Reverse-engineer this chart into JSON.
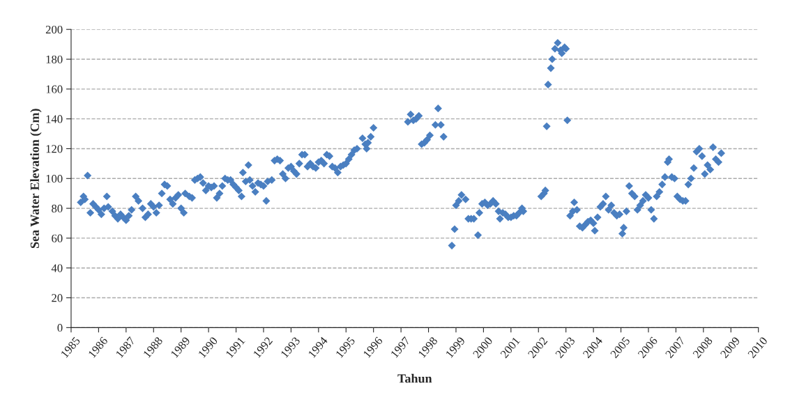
{
  "chart_data": {
    "type": "scatter",
    "xlabel": "Tahun",
    "ylabel": "Sea Water Elevation (Cm)",
    "x": [
      1985.35,
      1985.45,
      1985.5,
      1985.6,
      1985.7,
      1985.8,
      1985.9,
      1986.0,
      1986.1,
      1986.2,
      1986.3,
      1986.35,
      1986.5,
      1986.6,
      1986.7,
      1986.8,
      1986.9,
      1987.0,
      1987.1,
      1987.2,
      1987.35,
      1987.45,
      1987.6,
      1987.7,
      1987.8,
      1987.9,
      1988.0,
      1988.1,
      1988.2,
      1988.3,
      1988.4,
      1988.5,
      1988.6,
      1988.7,
      1988.8,
      1988.9,
      1989.0,
      1989.1,
      1989.15,
      1989.3,
      1989.4,
      1989.5,
      1989.6,
      1989.7,
      1989.8,
      1989.9,
      1990.0,
      1990.1,
      1990.2,
      1990.3,
      1990.4,
      1990.5,
      1990.6,
      1990.7,
      1990.8,
      1990.9,
      1991.0,
      1991.1,
      1991.2,
      1991.25,
      1991.35,
      1991.45,
      1991.5,
      1991.6,
      1991.7,
      1991.8,
      1991.9,
      1992.0,
      1992.1,
      1992.15,
      1992.3,
      1992.4,
      1992.5,
      1992.6,
      1992.7,
      1992.8,
      1992.9,
      1993.0,
      1993.1,
      1993.2,
      1993.3,
      1993.4,
      1993.5,
      1993.6,
      1993.7,
      1993.8,
      1993.9,
      1994.0,
      1994.1,
      1994.2,
      1994.3,
      1994.4,
      1994.5,
      1994.6,
      1994.7,
      1994.8,
      1994.9,
      1995.0,
      1995.1,
      1995.2,
      1995.3,
      1995.4,
      1995.6,
      1995.7,
      1995.75,
      1995.8,
      1995.9,
      1996.0,
      1997.25,
      1997.35,
      1997.45,
      1997.55,
      1997.65,
      1997.75,
      1997.85,
      1997.95,
      1998.05,
      1998.25,
      1998.35,
      1998.45,
      1998.55,
      1998.85,
      1998.95,
      1999.0,
      1999.1,
      1999.2,
      1999.35,
      1999.45,
      1999.55,
      1999.65,
      1999.8,
      1999.85,
      1999.95,
      2000.05,
      2000.15,
      2000.25,
      2000.35,
      2000.45,
      2000.55,
      2000.6,
      2000.7,
      2000.8,
      2000.9,
      2001.0,
      2001.1,
      2001.2,
      2001.3,
      2001.4,
      2001.45,
      2002.1,
      2002.2,
      2002.25,
      2002.3,
      2002.35,
      2002.45,
      2002.5,
      2002.6,
      2002.7,
      2002.8,
      2002.85,
      2002.95,
      2003.0,
      2003.05,
      2003.15,
      2003.25,
      2003.3,
      2003.4,
      2003.5,
      2003.6,
      2003.7,
      2003.8,
      2003.9,
      2004.0,
      2004.05,
      2004.15,
      2004.25,
      2004.35,
      2004.45,
      2004.55,
      2004.65,
      2004.75,
      2004.85,
      2004.95,
      2005.05,
      2005.1,
      2005.2,
      2005.3,
      2005.4,
      2005.5,
      2005.6,
      2005.7,
      2005.8,
      2005.9,
      2006.0,
      2006.1,
      2006.2,
      2006.3,
      2006.4,
      2006.5,
      2006.6,
      2006.7,
      2006.75,
      2006.85,
      2006.95,
      2007.05,
      2007.15,
      2007.25,
      2007.35,
      2007.45,
      2007.55,
      2007.65,
      2007.75,
      2007.85,
      2007.95,
      2008.05,
      2008.15,
      2008.25,
      2008.35,
      2008.45,
      2008.55,
      2008.65
    ],
    "series": [
      {
        "color": "#4a7fc1",
        "values": [
          84,
          88,
          86,
          102,
          77,
          83,
          81,
          79,
          76,
          80,
          88,
          81,
          78,
          75,
          73,
          76,
          74,
          72,
          75,
          79,
          88,
          85,
          80,
          74,
          76,
          83,
          81,
          77,
          82,
          90,
          96,
          95,
          86,
          83,
          87,
          89,
          80,
          77,
          90,
          88,
          87,
          99,
          100,
          101,
          97,
          92,
          95,
          94,
          95,
          87,
          90,
          95,
          100,
          99,
          99,
          96,
          94,
          92,
          88,
          104,
          98,
          109,
          99,
          95,
          91,
          97,
          96,
          95,
          85,
          98,
          99,
          112,
          113,
          112,
          103,
          100,
          107,
          108,
          105,
          103,
          110,
          116,
          116,
          108,
          110,
          108,
          107,
          111,
          112,
          110,
          116,
          115,
          108,
          107,
          104,
          108,
          109,
          110,
          113,
          116,
          119,
          120,
          127,
          123,
          120,
          124,
          128,
          134,
          138,
          143,
          139,
          140,
          142,
          123,
          124,
          126,
          129,
          136,
          147,
          136,
          128,
          55,
          66,
          82,
          85,
          89,
          86,
          73,
          73,
          73,
          62,
          77,
          83,
          84,
          82,
          83,
          85,
          83,
          78,
          73,
          77,
          76,
          74,
          74,
          75,
          75,
          77,
          80,
          78,
          88,
          90,
          92,
          135,
          163,
          174,
          180,
          187,
          191,
          186,
          184,
          188,
          187,
          139,
          75,
          78,
          84,
          79,
          68,
          67,
          69,
          71,
          72,
          70,
          65,
          74,
          81,
          83,
          88,
          79,
          82,
          77,
          75,
          76,
          63,
          67,
          78,
          95,
          90,
          88,
          79,
          82,
          85,
          89,
          87,
          79,
          73,
          88,
          91,
          96,
          101,
          111,
          113,
          101,
          100,
          88,
          86,
          85,
          85,
          96,
          100,
          107,
          118,
          120,
          115,
          103,
          109,
          106,
          121,
          113,
          111,
          117
        ]
      }
    ],
    "xlim": [
      1985,
      2010
    ],
    "xticks": [
      1985,
      1986,
      1987,
      1988,
      1989,
      1990,
      1991,
      1992,
      1993,
      1994,
      1995,
      1996,
      1997,
      1998,
      1999,
      2000,
      2001,
      2002,
      2003,
      2004,
      2005,
      2006,
      2007,
      2008,
      2009,
      2010
    ],
    "ylim": [
      0,
      200
    ],
    "yticks": [
      0,
      20,
      40,
      60,
      80,
      100,
      120,
      140,
      160,
      180,
      200
    ],
    "grid": "y",
    "marker": "diamond"
  }
}
